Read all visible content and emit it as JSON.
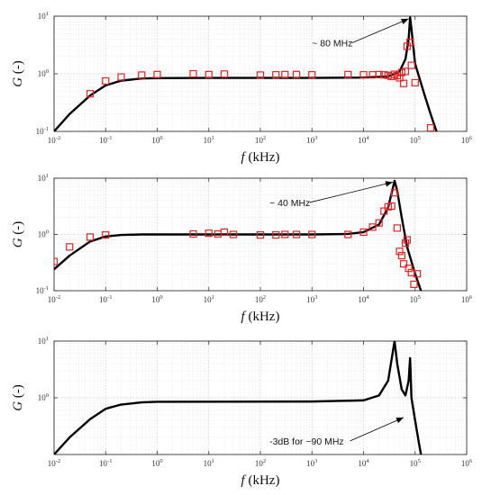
{
  "chart_data": [
    {
      "type": "line",
      "xscale": "log",
      "yscale": "log",
      "xlim": [
        0.01,
        1000000
      ],
      "ylim": [
        0.1,
        10
      ],
      "grid": true,
      "xlabel": "f (kHz)",
      "ylabel": "G (-)",
      "xticks": [
        {
          "base": "10",
          "exp": "-2"
        },
        {
          "base": "10",
          "exp": "-1"
        },
        {
          "base": "10",
          "exp": "0"
        },
        {
          "base": "10",
          "exp": "1"
        },
        {
          "base": "10",
          "exp": "2"
        },
        {
          "base": "10",
          "exp": "3"
        },
        {
          "base": "10",
          "exp": "4"
        },
        {
          "base": "10",
          "exp": "5"
        },
        {
          "base": "10",
          "exp": "6"
        }
      ],
      "yticks": [
        {
          "base": "10",
          "exp": "-1"
        },
        {
          "base": "10",
          "exp": "0"
        },
        {
          "base": "10",
          "exp": "1"
        }
      ],
      "annotation": {
        "text": "~ 80 MHz",
        "x": 1000,
        "y": 3,
        "arrow_to": [
          75000,
          9
        ]
      },
      "series": [
        {
          "style": "solid",
          "color": "#000000",
          "points": [
            [
              0.01,
              0.1
            ],
            [
              0.02,
              0.2
            ],
            [
              0.05,
              0.42
            ],
            [
              0.1,
              0.63
            ],
            [
              0.2,
              0.76
            ],
            [
              0.5,
              0.83
            ],
            [
              1,
              0.84
            ],
            [
              10,
              0.85
            ],
            [
              100,
              0.85
            ],
            [
              1000,
              0.85
            ],
            [
              10000,
              0.86
            ],
            [
              30000,
              0.9
            ],
            [
              50000,
              1.1
            ],
            [
              65000,
              1.8
            ],
            [
              75000,
              4
            ],
            [
              80000,
              9.5
            ],
            [
              85000,
              6
            ],
            [
              100000,
              1.5
            ],
            [
              150000,
              0.45
            ],
            [
              200000,
              0.2
            ],
            [
              260000,
              0.1
            ]
          ]
        },
        {
          "style": "markers",
          "color": "#e32222",
          "points": [
            [
              0.05,
              0.45
            ],
            [
              0.1,
              0.75
            ],
            [
              0.2,
              0.88
            ],
            [
              0.5,
              0.95
            ],
            [
              1,
              0.97
            ],
            [
              5,
              1
            ],
            [
              10,
              0.97
            ],
            [
              20,
              0.99
            ],
            [
              100,
              0.95
            ],
            [
              200,
              0.96
            ],
            [
              300,
              0.97
            ],
            [
              500,
              0.97
            ],
            [
              1000,
              0.96
            ],
            [
              5000,
              0.97
            ],
            [
              10000,
              0.96
            ],
            [
              15000,
              0.96
            ],
            [
              20000,
              0.97
            ],
            [
              25000,
              0.96
            ],
            [
              30000,
              0.94
            ],
            [
              35000,
              0.9
            ],
            [
              40000,
              0.98
            ],
            [
              45000,
              0.93
            ],
            [
              50000,
              0.85
            ],
            [
              55000,
              1.05
            ],
            [
              60000,
              0.68
            ],
            [
              65000,
              1.1
            ],
            [
              70000,
              3
            ],
            [
              80000,
              3.5
            ],
            [
              85000,
              1.4
            ],
            [
              100000,
              0.7
            ],
            [
              200000,
              0.115
            ]
          ]
        }
      ]
    },
    {
      "type": "line",
      "xscale": "log",
      "yscale": "log",
      "xlim": [
        0.01,
        1000000
      ],
      "ylim": [
        0.1,
        10
      ],
      "grid": true,
      "xlabel": "f (kHz)",
      "ylabel": "G (-)",
      "xticks": [
        {
          "base": "10",
          "exp": "-2"
        },
        {
          "base": "10",
          "exp": "-1"
        },
        {
          "base": "10",
          "exp": "0"
        },
        {
          "base": "10",
          "exp": "1"
        },
        {
          "base": "10",
          "exp": "2"
        },
        {
          "base": "10",
          "exp": "3"
        },
        {
          "base": "10",
          "exp": "4"
        },
        {
          "base": "10",
          "exp": "5"
        },
        {
          "base": "10",
          "exp": "6"
        }
      ],
      "yticks": [
        {
          "base": "10",
          "exp": "-1"
        },
        {
          "base": "10",
          "exp": "0"
        },
        {
          "base": "10",
          "exp": "1"
        }
      ],
      "annotation": {
        "text": "~ 40 MHz",
        "x": 150,
        "y": 3.2,
        "arrow_to": [
          37000,
          8.5
        ]
      },
      "series": [
        {
          "style": "solid",
          "color": "#000000",
          "points": [
            [
              0.01,
              0.24
            ],
            [
              0.02,
              0.42
            ],
            [
              0.05,
              0.75
            ],
            [
              0.1,
              0.92
            ],
            [
              0.2,
              0.98
            ],
            [
              0.5,
              1
            ],
            [
              1,
              1
            ],
            [
              100,
              1
            ],
            [
              1000,
              1
            ],
            [
              5000,
              1.02
            ],
            [
              10000,
              1.1
            ],
            [
              20000,
              1.5
            ],
            [
              30000,
              3
            ],
            [
              40000,
              9
            ],
            [
              45000,
              6
            ],
            [
              55000,
              2
            ],
            [
              70000,
              0.6
            ],
            [
              100000,
              0.2
            ],
            [
              130000,
              0.1
            ]
          ]
        },
        {
          "style": "markers",
          "color": "#e32222",
          "points": [
            [
              0.01,
              0.33
            ],
            [
              0.02,
              0.6
            ],
            [
              0.05,
              0.9
            ],
            [
              0.1,
              0.98
            ],
            [
              5,
              1.02
            ],
            [
              10,
              1.05
            ],
            [
              15,
              1.02
            ],
            [
              20,
              1.1
            ],
            [
              30,
              1
            ],
            [
              100,
              0.98
            ],
            [
              200,
              0.98
            ],
            [
              300,
              1
            ],
            [
              500,
              1
            ],
            [
              1000,
              1
            ],
            [
              5000,
              1
            ],
            [
              10000,
              1.1
            ],
            [
              15000,
              1.35
            ],
            [
              20000,
              1.6
            ],
            [
              25000,
              2.6
            ],
            [
              30000,
              3.1
            ],
            [
              35000,
              3.2
            ],
            [
              40000,
              5.5
            ],
            [
              45000,
              1.3
            ],
            [
              50000,
              0.5
            ],
            [
              55000,
              0.42
            ],
            [
              60000,
              0.3
            ],
            [
              65000,
              0.7
            ],
            [
              70000,
              0.8
            ],
            [
              75000,
              0.25
            ],
            [
              85000,
              0.21
            ],
            [
              95000,
              0.13
            ],
            [
              110000,
              0.2
            ]
          ]
        }
      ]
    },
    {
      "type": "line",
      "xscale": "log",
      "yscale": "log",
      "xlim": [
        0.01,
        1000000
      ],
      "ylim": [
        0.1,
        10
      ],
      "grid": true,
      "xlabel": "f (kHz)",
      "ylabel": "G (-)",
      "xticks": [
        {
          "base": "10",
          "exp": "-2"
        },
        {
          "base": "10",
          "exp": "-1"
        },
        {
          "base": "10",
          "exp": "0"
        },
        {
          "base": "10",
          "exp": "1"
        },
        {
          "base": "10",
          "exp": "2"
        },
        {
          "base": "10",
          "exp": "3"
        },
        {
          "base": "10",
          "exp": "4"
        },
        {
          "base": "10",
          "exp": "5"
        },
        {
          "base": "10",
          "exp": "6"
        }
      ],
      "yticks": [
        {
          "base": "10",
          "exp": "0"
        },
        {
          "base": "10",
          "exp": "1"
        }
      ],
      "annotation": {
        "text": "-3dB for ~90 MHz",
        "x": 150,
        "y": 0.15,
        "arrow_to": [
          60000,
          0.45
        ]
      },
      "series": [
        {
          "style": "solid",
          "color": "#000000",
          "points": [
            [
              0.01,
              0.1
            ],
            [
              0.02,
              0.2
            ],
            [
              0.05,
              0.42
            ],
            [
              0.1,
              0.64
            ],
            [
              0.2,
              0.76
            ],
            [
              0.5,
              0.83
            ],
            [
              1,
              0.85
            ],
            [
              1000,
              0.86
            ],
            [
              10000,
              0.9
            ],
            [
              20000,
              1.1
            ],
            [
              30000,
              2
            ],
            [
              40000,
              10
            ],
            [
              45000,
              4
            ],
            [
              55000,
              1.4
            ],
            [
              65000,
              1.1
            ],
            [
              75000,
              2
            ],
            [
              80000,
              5
            ],
            [
              85000,
              1
            ],
            [
              100000,
              0.4
            ],
            [
              120000,
              0.15
            ],
            [
              130000,
              0.1
            ]
          ]
        }
      ]
    }
  ]
}
